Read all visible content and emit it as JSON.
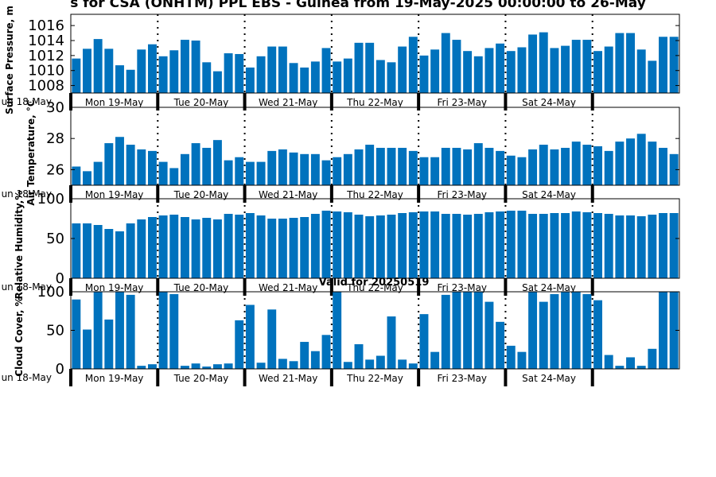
{
  "title": "s for CSA (ONHTM) PPL EBS  - Guinea from 19-May-2025 00:00:00 to 26-May",
  "valid_label": "Valid for 20250519",
  "colors": {
    "bar": "#0072bd",
    "axis": "#000000",
    "background": "#ffffff"
  },
  "x_axis": {
    "day_ticks": [
      "Mon 19-May",
      "Tue 20-May",
      "Wed 21-May",
      "Thu 22-May",
      "Fri 23-May",
      "Sat 24-May"
    ],
    "cut_label": "un 18-May"
  },
  "chart_data": [
    {
      "type": "bar",
      "ylabel": "Surface Pressure, m",
      "ylim": [
        1007,
        1017.5
      ],
      "yticks": [
        1008,
        1010,
        1012,
        1014,
        1016
      ],
      "grid": false,
      "values": [
        1011.6,
        1012.9,
        1014.2,
        1012.9,
        1010.7,
        1010.1,
        1012.8,
        1013.5,
        1011.9,
        1012.7,
        1014.1,
        1014.0,
        1011.1,
        1009.9,
        1012.3,
        1012.2,
        1010.4,
        1011.9,
        1013.2,
        1013.2,
        1011.0,
        1010.4,
        1011.2,
        1013.0,
        1011.2,
        1011.6,
        1013.7,
        1013.7,
        1011.4,
        1011.1,
        1013.2,
        1014.5,
        1012.0,
        1012.8,
        1015.0,
        1014.1,
        1012.6,
        1011.9,
        1013.0,
        1013.6,
        1012.6,
        1013.1,
        1014.8,
        1015.1,
        1013.0,
        1013.3,
        1014.1,
        1014.1,
        1012.6,
        1013.2,
        1015.0,
        1015.0,
        1012.8,
        1011.3,
        1014.5,
        1014.5
      ]
    },
    {
      "type": "bar",
      "ylabel": "Air Temperature, °C",
      "ylim": [
        25,
        30
      ],
      "yticks": [
        26,
        28,
        30
      ],
      "grid": false,
      "values": [
        26.2,
        25.9,
        26.5,
        27.7,
        28.1,
        27.6,
        27.3,
        27.2,
        26.5,
        26.1,
        27.0,
        27.7,
        27.4,
        27.9,
        26.6,
        26.8,
        26.5,
        26.5,
        27.2,
        27.3,
        27.1,
        27.0,
        27.0,
        26.6,
        26.8,
        27.0,
        27.3,
        27.6,
        27.4,
        27.4,
        27.4,
        27.2,
        26.8,
        26.8,
        27.4,
        27.4,
        27.3,
        27.7,
        27.4,
        27.2,
        26.9,
        26.8,
        27.3,
        27.6,
        27.3,
        27.4,
        27.8,
        27.6,
        27.5,
        27.2,
        27.8,
        28.0,
        28.3,
        27.8,
        27.4,
        27.0
      ]
    },
    {
      "type": "bar",
      "ylabel": "Relative Humidity,%",
      "ylim": [
        0,
        100
      ],
      "yticks": [
        0,
        50,
        100
      ],
      "grid": false,
      "values": [
        69,
        69,
        67,
        62,
        59,
        69,
        74,
        77,
        79,
        80,
        77,
        74,
        76,
        74,
        81,
        80,
        82,
        79,
        75,
        75,
        76,
        77,
        81,
        85,
        84,
        83,
        80,
        78,
        79,
        80,
        82,
        83,
        84,
        84,
        81,
        81,
        80,
        81,
        83,
        84,
        85,
        85,
        81,
        81,
        82,
        82,
        84,
        83,
        82,
        81,
        79,
        79,
        78,
        80,
        82,
        82
      ]
    },
    {
      "type": "bar",
      "ylabel": "Cloud Cover, %",
      "ylim": [
        0,
        100
      ],
      "yticks": [
        0,
        50,
        100
      ],
      "grid": false,
      "values": [
        90,
        51,
        100,
        64,
        100,
        96,
        4,
        6,
        100,
        97,
        4,
        7,
        3,
        6,
        7,
        63,
        83,
        8,
        77,
        13,
        10,
        35,
        23,
        44,
        100,
        9,
        32,
        12,
        17,
        68,
        12,
        7,
        71,
        22,
        96,
        100,
        100,
        100,
        87,
        61,
        30,
        22,
        100,
        87,
        97,
        100,
        100,
        97,
        89,
        18,
        4,
        15,
        4,
        26,
        100,
        100
      ]
    }
  ]
}
